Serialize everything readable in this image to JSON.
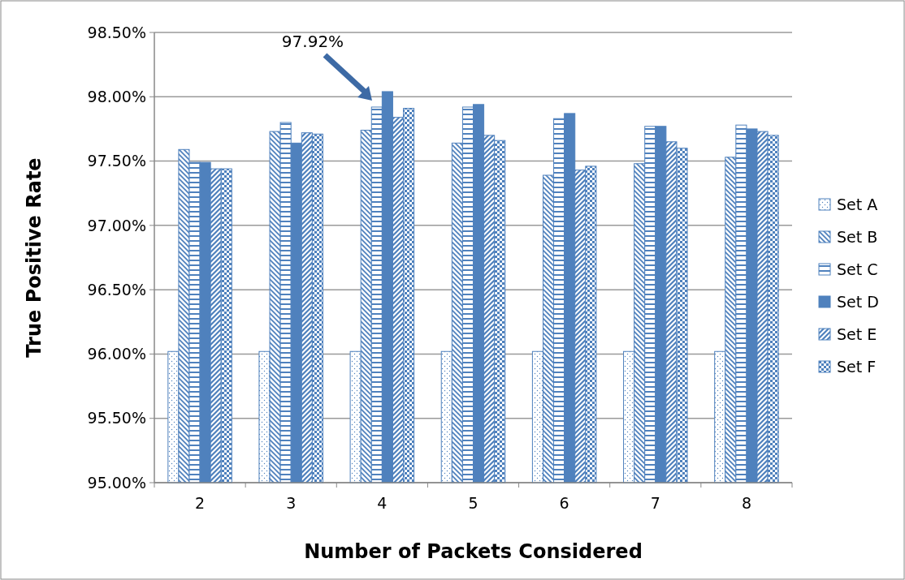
{
  "chart_data": {
    "type": "bar",
    "xlabel": "Number of Packets Considered",
    "ylabel": "True Positive Rate",
    "categories": [
      "2",
      "3",
      "4",
      "5",
      "6",
      "7",
      "8"
    ],
    "series": [
      {
        "name": "Set A",
        "color": "#4f81bd",
        "values": [
          96.02,
          96.02,
          96.02,
          96.02,
          96.02,
          96.02,
          96.02
        ]
      },
      {
        "name": "Set B",
        "color": "#4f81bd",
        "values": [
          97.59,
          97.73,
          97.74,
          97.64,
          97.39,
          97.48,
          97.53
        ]
      },
      {
        "name": "Set C",
        "color": "#4f81bd",
        "values": [
          97.49,
          97.8,
          97.92,
          97.92,
          97.83,
          97.77,
          97.78
        ]
      },
      {
        "name": "Set D",
        "color": "#4f81bd",
        "values": [
          97.49,
          97.64,
          98.04,
          97.94,
          97.87,
          97.77,
          97.75
        ]
      },
      {
        "name": "Set E",
        "color": "#4f81bd",
        "values": [
          97.44,
          97.72,
          97.84,
          97.7,
          97.43,
          97.65,
          97.73
        ]
      },
      {
        "name": "Set F",
        "color": "#4f81bd",
        "values": [
          97.44,
          97.71,
          97.91,
          97.66,
          97.46,
          97.6,
          97.7
        ]
      }
    ],
    "ylim": [
      95,
      98.5
    ],
    "yticks": [
      {
        "value": 95,
        "label": "95.00%"
      },
      {
        "value": 95.5,
        "label": "95.50%"
      },
      {
        "value": 96,
        "label": "96.00%"
      },
      {
        "value": 96.5,
        "label": "96.50%"
      },
      {
        "value": 97,
        "label": "97.00%"
      },
      {
        "value": 97.5,
        "label": "97.50%"
      },
      {
        "value": 98,
        "label": "98.00%"
      },
      {
        "value": 98.5,
        "label": "98.50%"
      }
    ],
    "grid": "y",
    "legend": "right",
    "annotations": [
      "97.92%"
    ]
  }
}
